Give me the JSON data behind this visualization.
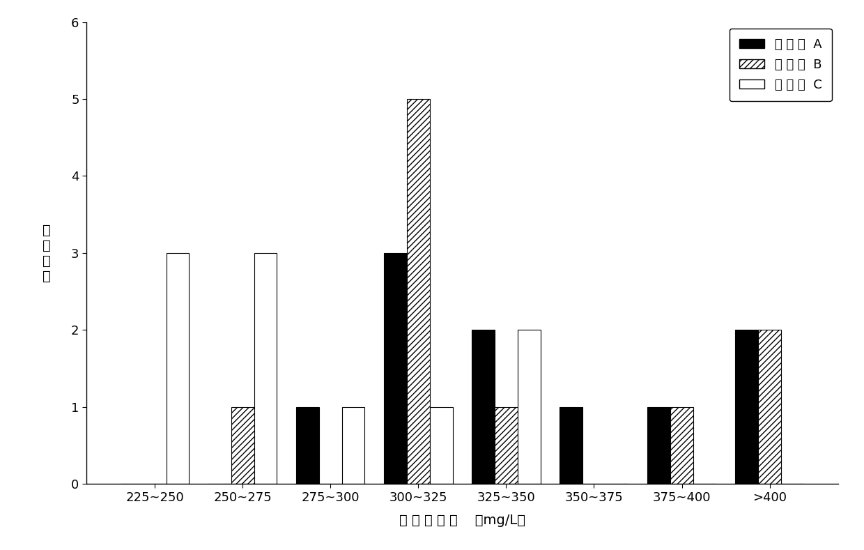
{
  "categories": [
    "225~250",
    "250~275",
    "275~300",
    "300~325",
    "325~350",
    "350~375",
    "375~400",
    ">400"
  ],
  "series_A": [
    0,
    0,
    1,
    3,
    2,
    1,
    1,
    2
  ],
  "series_B": [
    0,
    1,
    0,
    5,
    1,
    0,
    1,
    2
  ],
  "series_C": [
    3,
    3,
    1,
    1,
    2,
    0,
    0,
    0
  ],
  "legend_labels": [
    "细 胞 池  A",
    "细 胞 池  B",
    "细 胞 池  C"
  ],
  "ylabel_chars": [
    "克",
    "隆",
    "个",
    "数"
  ],
  "xlabel": "表 达 量 范 围    （mg/L）",
  "ylim": [
    0,
    6
  ],
  "yticks": [
    0,
    1,
    2,
    3,
    4,
    5,
    6
  ],
  "bar_width": 0.26,
  "color_A": "#000000",
  "color_B": "#ffffff",
  "color_C": "#ffffff",
  "hatch_A": "",
  "hatch_B": "////",
  "hatch_C": "",
  "edge_color_A": "#000000",
  "edge_color_B": "#000000",
  "edge_color_C": "#000000",
  "background_color": "#ffffff",
  "figsize": [
    12.4,
    7.89
  ],
  "dpi": 100
}
